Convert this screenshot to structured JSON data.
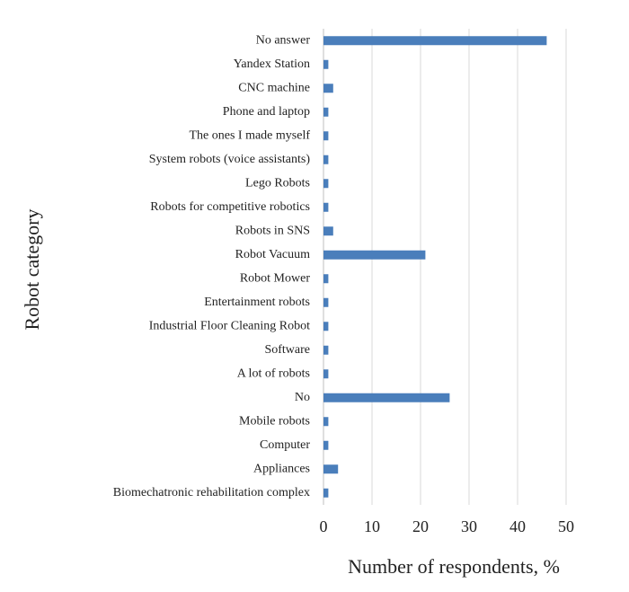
{
  "chart_data": {
    "type": "bar",
    "orientation": "horizontal",
    "x_label": "Number of respondents, %",
    "y_label": "Robot category",
    "categories": [
      "No answer",
      "Yandex Station",
      "CNC machine",
      "Phone and laptop",
      "The ones I made myself",
      "System robots (voice assistants)",
      "Lego Robots",
      "Robots for competitive robotics",
      "Robots in SNS",
      "Robot Vacuum",
      "Robot Mower",
      "Entertainment robots",
      "Industrial Floor Cleaning Robot",
      "Software",
      "A lot of robots",
      "No",
      "Mobile robots",
      "Computer",
      "Appliances",
      "Biomechatronic rehabilitation complex"
    ],
    "values": [
      46,
      1,
      2,
      1,
      1,
      1,
      1,
      1,
      2,
      21,
      1,
      1,
      1,
      1,
      1,
      26,
      1,
      1,
      3,
      1
    ],
    "color": "#4a7ebb",
    "xlim": [
      0,
      50
    ],
    "xticks": [
      0,
      10,
      20,
      30,
      40,
      50
    ],
    "grid": true
  }
}
